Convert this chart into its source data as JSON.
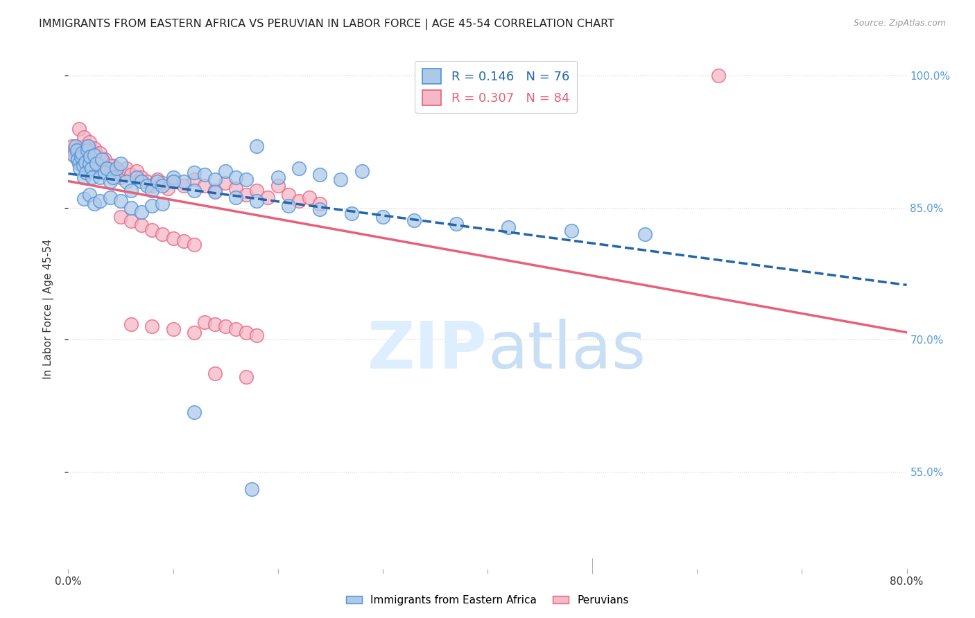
{
  "title": "IMMIGRANTS FROM EASTERN AFRICA VS PERUVIAN IN LABOR FORCE | AGE 45-54 CORRELATION CHART",
  "source": "Source: ZipAtlas.com",
  "ylabel": "In Labor Force | Age 45-54",
  "xlim": [
    0.0,
    0.8
  ],
  "ylim": [
    0.44,
    1.03
  ],
  "yticks": [
    0.55,
    0.7,
    0.85,
    1.0
  ],
  "ytick_labels": [
    "55.0%",
    "70.0%",
    "85.0%",
    "100.0%"
  ],
  "xtick_positions": [
    0.0,
    0.1,
    0.2,
    0.3,
    0.4,
    0.5,
    0.6,
    0.7,
    0.8
  ],
  "xtick_labels": [
    "0.0%",
    "",
    "",
    "",
    "",
    "",
    "",
    "",
    "80.0%"
  ],
  "blue_R": 0.146,
  "blue_N": 76,
  "pink_R": 0.307,
  "pink_N": 84,
  "blue_color": "#aec9e8",
  "pink_color": "#f4b8c8",
  "blue_edge_color": "#4a90d9",
  "pink_edge_color": "#e8607a",
  "blue_line_color": "#2166ac",
  "pink_line_color": "#e8607a",
  "background_color": "#ffffff",
  "grid_color": "#d0d0d0",
  "watermark_color": "#ddeeff",
  "legend_label_blue": "Immigrants from Eastern Africa",
  "legend_label_pink": "Peruvians",
  "blue_scatter_x": [
    0.005,
    0.007,
    0.008,
    0.009,
    0.01,
    0.011,
    0.012,
    0.013,
    0.014,
    0.015,
    0.016,
    0.017,
    0.018,
    0.019,
    0.02,
    0.021,
    0.022,
    0.023,
    0.025,
    0.027,
    0.03,
    0.032,
    0.035,
    0.037,
    0.04,
    0.043,
    0.046,
    0.05,
    0.055,
    0.06,
    0.065,
    0.07,
    0.075,
    0.08,
    0.085,
    0.09,
    0.1,
    0.11,
    0.12,
    0.13,
    0.14,
    0.15,
    0.16,
    0.17,
    0.18,
    0.2,
    0.22,
    0.24,
    0.26,
    0.28,
    0.015,
    0.02,
    0.025,
    0.03,
    0.04,
    0.05,
    0.06,
    0.07,
    0.08,
    0.09,
    0.1,
    0.12,
    0.14,
    0.16,
    0.18,
    0.21,
    0.24,
    0.27,
    0.3,
    0.33,
    0.37,
    0.42,
    0.48,
    0.55,
    0.12,
    0.175
  ],
  "blue_scatter_y": [
    0.91,
    0.92,
    0.915,
    0.905,
    0.9,
    0.895,
    0.908,
    0.912,
    0.898,
    0.885,
    0.902,
    0.89,
    0.915,
    0.92,
    0.9,
    0.908,
    0.895,
    0.885,
    0.91,
    0.9,
    0.885,
    0.905,
    0.89,
    0.895,
    0.88,
    0.885,
    0.895,
    0.9,
    0.88,
    0.87,
    0.885,
    0.88,
    0.875,
    0.87,
    0.88,
    0.875,
    0.885,
    0.88,
    0.89,
    0.888,
    0.882,
    0.892,
    0.885,
    0.882,
    0.92,
    0.885,
    0.895,
    0.888,
    0.882,
    0.892,
    0.86,
    0.865,
    0.855,
    0.858,
    0.862,
    0.858,
    0.85,
    0.845,
    0.852,
    0.855,
    0.88,
    0.87,
    0.868,
    0.862,
    0.858,
    0.852,
    0.848,
    0.844,
    0.84,
    0.836,
    0.832,
    0.828,
    0.824,
    0.82,
    0.618,
    0.53
  ],
  "pink_scatter_x": [
    0.004,
    0.006,
    0.007,
    0.008,
    0.009,
    0.01,
    0.011,
    0.012,
    0.013,
    0.014,
    0.015,
    0.016,
    0.017,
    0.018,
    0.019,
    0.02,
    0.021,
    0.022,
    0.023,
    0.024,
    0.025,
    0.026,
    0.027,
    0.028,
    0.03,
    0.032,
    0.035,
    0.037,
    0.04,
    0.043,
    0.046,
    0.05,
    0.055,
    0.06,
    0.065,
    0.07,
    0.075,
    0.08,
    0.085,
    0.09,
    0.095,
    0.1,
    0.11,
    0.12,
    0.13,
    0.14,
    0.15,
    0.16,
    0.17,
    0.18,
    0.19,
    0.2,
    0.21,
    0.22,
    0.23,
    0.24,
    0.01,
    0.015,
    0.02,
    0.025,
    0.03,
    0.035,
    0.04,
    0.05,
    0.06,
    0.07,
    0.08,
    0.09,
    0.1,
    0.11,
    0.12,
    0.13,
    0.14,
    0.15,
    0.16,
    0.17,
    0.18,
    0.06,
    0.08,
    0.1,
    0.12,
    0.14,
    0.17,
    0.62
  ],
  "pink_scatter_y": [
    0.92,
    0.915,
    0.908,
    0.912,
    0.905,
    0.918,
    0.91,
    0.902,
    0.908,
    0.915,
    0.92,
    0.91,
    0.905,
    0.9,
    0.912,
    0.908,
    0.915,
    0.905,
    0.9,
    0.91,
    0.908,
    0.912,
    0.905,
    0.9,
    0.895,
    0.905,
    0.9,
    0.895,
    0.89,
    0.898,
    0.892,
    0.885,
    0.895,
    0.888,
    0.892,
    0.885,
    0.88,
    0.875,
    0.882,
    0.878,
    0.872,
    0.88,
    0.875,
    0.882,
    0.875,
    0.87,
    0.878,
    0.872,
    0.865,
    0.87,
    0.862,
    0.875,
    0.865,
    0.858,
    0.862,
    0.855,
    0.94,
    0.93,
    0.925,
    0.918,
    0.912,
    0.905,
    0.898,
    0.84,
    0.835,
    0.83,
    0.825,
    0.82,
    0.815,
    0.812,
    0.808,
    0.72,
    0.718,
    0.715,
    0.712,
    0.708,
    0.705,
    0.718,
    0.715,
    0.712,
    0.708,
    0.662,
    0.658,
    1.0
  ]
}
